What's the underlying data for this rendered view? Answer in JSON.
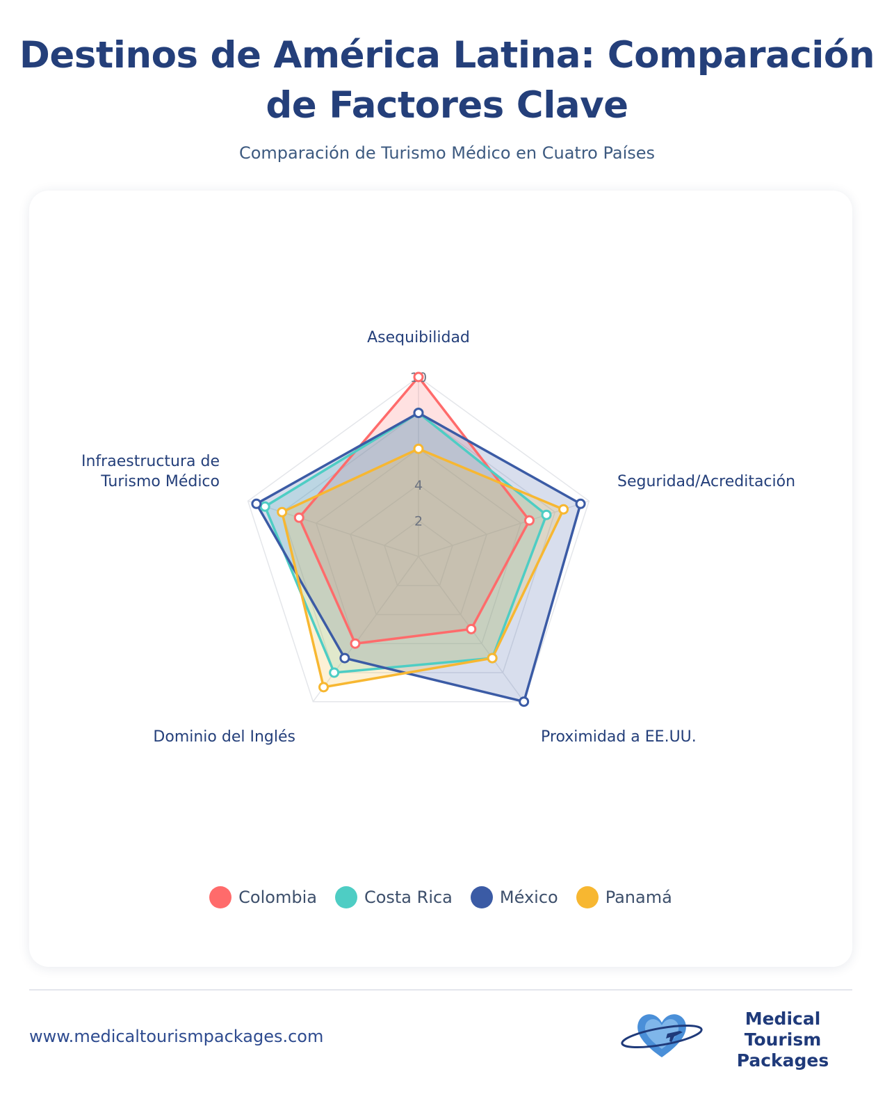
{
  "header": {
    "title": "Destinos de América Latina: Comparación de Factores Clave",
    "subtitle": "Comparación de Turismo Médico en Cuatro Países"
  },
  "chart_data": {
    "type": "radar",
    "categories": [
      "Asequibilidad",
      "Seguridad/Acreditación",
      "Proximidad a EE.UU.",
      "Dominio del Inglés",
      "Infraestructura de Turismo Médico"
    ],
    "rlim": [
      0,
      10
    ],
    "radial_ticks": [
      2,
      4,
      6,
      8,
      10
    ],
    "grid": true,
    "legend_position": "bottom",
    "series": [
      {
        "name": "Colombia",
        "color": "#ff6b6b",
        "values": [
          10,
          6.5,
          5,
          6,
          7
        ]
      },
      {
        "name": "Costa Rica",
        "color": "#4ecdc4",
        "values": [
          8,
          7.5,
          7,
          8,
          9
        ]
      },
      {
        "name": "México",
        "color": "#3b5ba5",
        "values": [
          8,
          9.5,
          10,
          7,
          9.5
        ]
      },
      {
        "name": "Panamá",
        "color": "#f7b731",
        "values": [
          6,
          8.5,
          7,
          9,
          8
        ]
      }
    ]
  },
  "footer": {
    "url": "www.medicaltourismpackages.com",
    "brand_line1": "Medical Tourism",
    "brand_line2": "Packages",
    "logo_icon": "heart-plane-icon"
  }
}
